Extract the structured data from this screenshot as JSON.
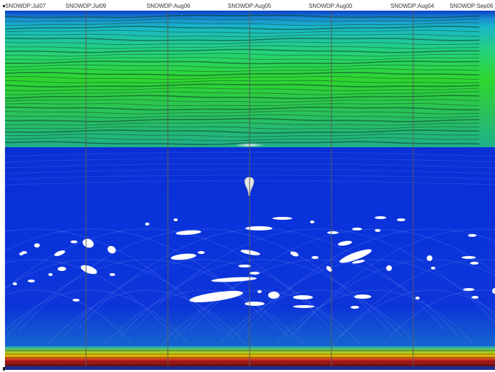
{
  "header": {
    "channels": [
      {
        "label": "SNOWDP:Jul07"
      },
      {
        "label": "SNOWDP:Jul09"
      },
      {
        "label": "SNOWDP:Aug06"
      },
      {
        "label": "SNOWDP:Aug05"
      },
      {
        "label": "SNOWDP:Aug00"
      },
      {
        "label": "SNOWDP:Aug04"
      },
      {
        "label": "SNOWDP:Sep06"
      }
    ]
  },
  "colors": {
    "deep_blue": "#0a2fd6",
    "mid_blue": "#1f5ae8",
    "cyan": "#19b7c9",
    "green": "#2ed62e",
    "dark_green": "#0e4a25",
    "yellow": "#e6e600",
    "red": "#c81e1e",
    "dark_red": "#5a0f0f",
    "scrollbar": "#1b2f8e"
  },
  "icons": {
    "marker": "bulb-icon"
  }
}
